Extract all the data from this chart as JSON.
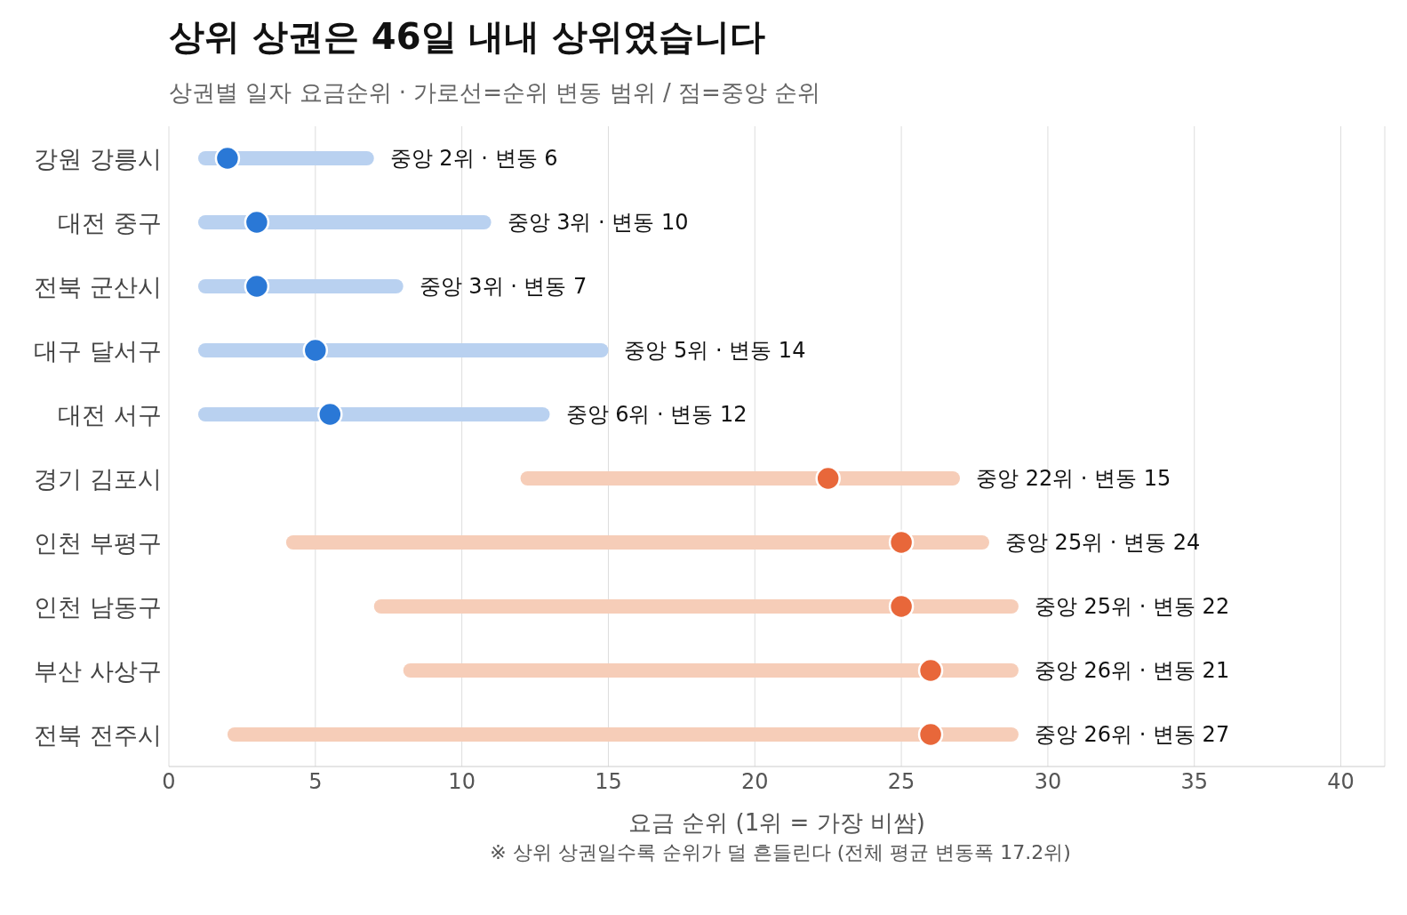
{
  "chart_data": {
    "type": "bar",
    "orientation": "horizontal",
    "title": "상위 상권은 46일 내내 상위였습니다",
    "subtitle": "상권별 일자 요금순위 · 가로선=순위 변동 범위 / 점=중앙 순위",
    "xlabel": "요금 순위 (1위 = 가장 비쌈)",
    "annotations": [
      "※ 상위 상권일수록 순위가 덜 흔들린다 (전체 평균 변동폭 17.2위)"
    ],
    "categories": [
      "강원 강릉시",
      "대전 중구",
      "전북 군산시",
      "대구 달서구",
      "대전 서구",
      "경기 김포시",
      "인천 부평구",
      "인천 남동구",
      "부산 사상구",
      "전북 전주시"
    ],
    "series": [
      {
        "type": "bar",
        "base": [
          1,
          1,
          1,
          1,
          1,
          12,
          4,
          7,
          8,
          2
        ],
        "values": [
          6,
          10,
          7,
          14,
          12,
          15,
          24,
          22,
          21,
          27
        ],
        "colors": [
          "#b9d1f0",
          "#b9d1f0",
          "#b9d1f0",
          "#b9d1f0",
          "#b9d1f0",
          "#f6cdb8",
          "#f6cdb8",
          "#f6cdb8",
          "#f6cdb8",
          "#f6cdb8"
        ],
        "value_labels": [
          "중앙 2위 · 변동 6",
          "중앙 3위 · 변동 10",
          "중앙 3위 · 변동 7",
          "중앙 5위 · 변동 14",
          "중앙 6위 · 변동 12",
          "중앙 22위 · 변동 15",
          "중앙 25위 · 변동 24",
          "중앙 25위 · 변동 22",
          "중앙 26위 · 변동 21",
          "중앙 26위 · 변동 27"
        ]
      },
      {
        "type": "scatter",
        "values": [
          2,
          3,
          3,
          5,
          5.5,
          22.5,
          25,
          25,
          26,
          26
        ],
        "colors": [
          "#2a78d6",
          "#2a78d6",
          "#2a78d6",
          "#2a78d6",
          "#2a78d6",
          "#e8673a",
          "#e8673a",
          "#e8673a",
          "#e8673a",
          "#e8673a"
        ]
      }
    ],
    "xlim": [
      0,
      41.5
    ],
    "xticks": [
      0,
      5,
      10,
      15,
      20,
      25,
      30,
      35,
      40
    ],
    "grid": "x",
    "marker": "circle"
  }
}
